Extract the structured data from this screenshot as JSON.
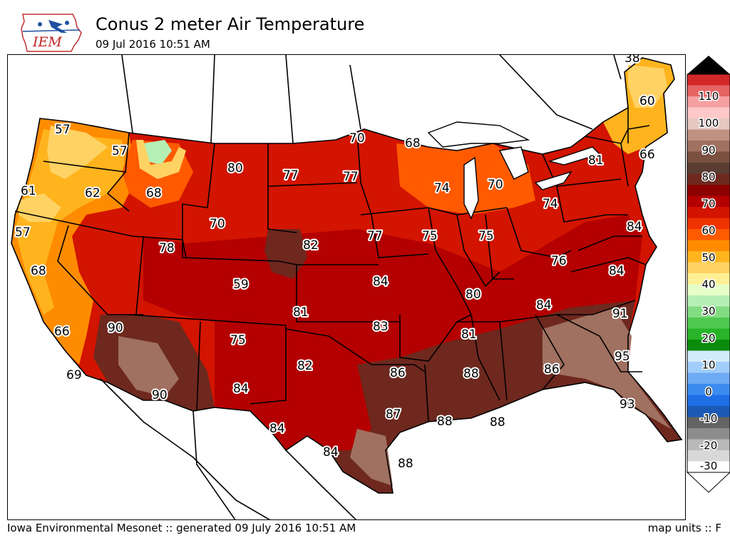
{
  "header": {
    "title": "Conus 2 meter Air Temperature",
    "subtitle": "09 Jul 2016 10:51 AM",
    "logo_text": "IEM"
  },
  "footer": {
    "left": "Iowa Environmental Mesonet :: generated 09 July 2016 10:51 AM",
    "right": "map units :: F"
  },
  "colorbar": {
    "labels": [
      "110",
      "100",
      "90",
      "80",
      "70",
      "60",
      "50",
      "40",
      "30",
      "20",
      "10",
      "0",
      "-10",
      "-20",
      "-30"
    ],
    "colors": [
      "#ffffff",
      "#d8d8d8",
      "#b8b8b8",
      "#8c8c8c",
      "#646464",
      "#1a5ab4",
      "#1e6ee6",
      "#3c8cf0",
      "#6eaaf5",
      "#a0cdfa",
      "#d2ebfc",
      "#0a8c0a",
      "#28b428",
      "#50c850",
      "#82dc82",
      "#b4f0b4",
      "#e6ffc8",
      "#fff096",
      "#ffd264",
      "#ffb41e",
      "#ff8c00",
      "#ff5a00",
      "#f03200",
      "#d21400",
      "#b40000",
      "#8c0000",
      "#6e281e",
      "#5a3c32",
      "#7a5040",
      "#a07060",
      "#c09080",
      "#e6c8c0",
      "#ffc8c8",
      "#f5a0a0",
      "#e66464",
      "#d22828"
    ]
  },
  "stations": [
    {
      "value": "38"
    },
    {
      "value": "60"
    },
    {
      "value": "57"
    },
    {
      "value": "57"
    },
    {
      "value": "70"
    },
    {
      "value": "68"
    },
    {
      "value": "66"
    },
    {
      "value": "81"
    },
    {
      "value": "80"
    },
    {
      "value": "77"
    },
    {
      "value": "77"
    },
    {
      "value": "61"
    },
    {
      "value": "62"
    },
    {
      "value": "68"
    },
    {
      "value": "74"
    },
    {
      "value": "70"
    },
    {
      "value": "74"
    },
    {
      "value": "70"
    },
    {
      "value": "57"
    },
    {
      "value": "84"
    },
    {
      "value": "82"
    },
    {
      "value": "77"
    },
    {
      "value": "75"
    },
    {
      "value": "75"
    },
    {
      "value": "78"
    },
    {
      "value": "68"
    },
    {
      "value": "76"
    },
    {
      "value": "84"
    },
    {
      "value": "84"
    },
    {
      "value": "59"
    },
    {
      "value": "80"
    },
    {
      "value": "81"
    },
    {
      "value": "91"
    },
    {
      "value": "84"
    },
    {
      "value": "90"
    },
    {
      "value": "83"
    },
    {
      "value": "66"
    },
    {
      "value": "81"
    },
    {
      "value": "75"
    },
    {
      "value": "95"
    },
    {
      "value": "69"
    },
    {
      "value": "82"
    },
    {
      "value": "86"
    },
    {
      "value": "88"
    },
    {
      "value": "86"
    },
    {
      "value": "90"
    },
    {
      "value": "84"
    },
    {
      "value": "93"
    },
    {
      "value": "87"
    },
    {
      "value": "88"
    },
    {
      "value": "88"
    },
    {
      "value": "84"
    },
    {
      "value": "84"
    },
    {
      "value": "88"
    }
  ]
}
